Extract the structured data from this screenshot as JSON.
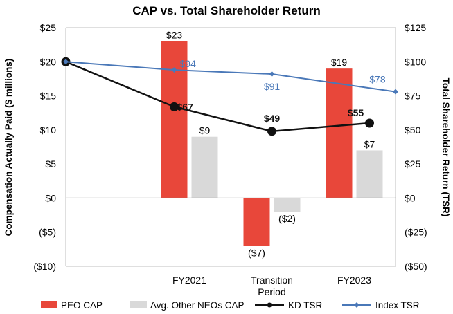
{
  "chart_data": {
    "type": "bar+line",
    "title": "CAP vs. Total Shareholder Return",
    "ylabel_left": "Compensation Actually Paid ($ millions)",
    "ylabel_right": "Total Shareholder Return (TSR)",
    "ylim_left": [
      -10,
      25
    ],
    "ylim_right": [
      -50,
      125
    ],
    "yticks_left": [
      "$25",
      "$20",
      "$15",
      "$10",
      "$5",
      "$0",
      "($5)",
      "($10)"
    ],
    "yticks_right": [
      "$125",
      "$100",
      "$75",
      "$50",
      "$25",
      "$0",
      "($25)",
      "($50)"
    ],
    "categories": [
      "FY2021",
      "Transition Period",
      "FY2023"
    ],
    "category_lines": [
      [
        "FY2021"
      ],
      [
        "Transition",
        "Period"
      ],
      [
        "FY2023"
      ]
    ],
    "bar_series": [
      {
        "name": "PEO CAP",
        "color": "#e8473a",
        "values": [
          23,
          -7,
          19
        ],
        "labels": [
          "$23",
          "($7)",
          "$19"
        ]
      },
      {
        "name": "Avg. Other NEOs CAP",
        "color": "#d9d9d9",
        "values": [
          9,
          -2,
          7
        ],
        "labels": [
          "$9",
          "($2)",
          "$7"
        ]
      }
    ],
    "line_series": [
      {
        "name": "KD TSR",
        "color": "#111111",
        "marker": "circle",
        "values": [
          100,
          67,
          49,
          55
        ],
        "labels": [
          "",
          "$67",
          "$49",
          "$55"
        ]
      },
      {
        "name": "Index TSR",
        "color": "#4a78b8",
        "marker": "diamond",
        "values": [
          100,
          94,
          91,
          78
        ],
        "labels": [
          "",
          "$94",
          "$91",
          "$78"
        ]
      }
    ],
    "legend": [
      "PEO CAP",
      "Avg. Other NEOs CAP",
      "KD TSR",
      "Index TSR"
    ]
  }
}
